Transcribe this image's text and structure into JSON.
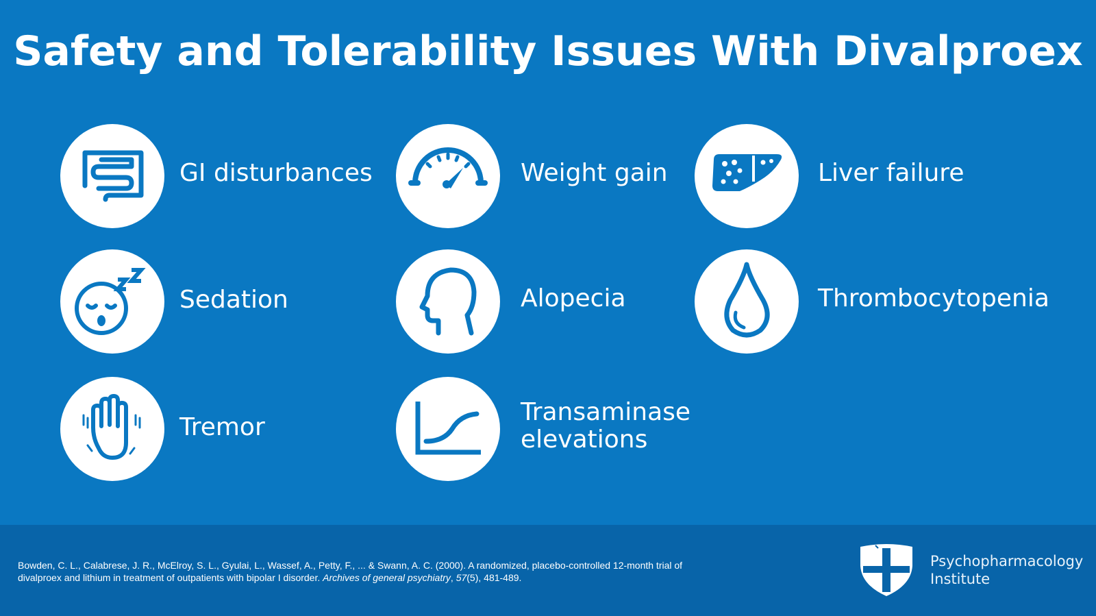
{
  "title": "Safety and Tolerability Issues With Divalproex",
  "colors": {
    "background": "#0a78c2",
    "footer": "#0864a9",
    "icon": "#0a78c2",
    "circle": "#ffffff"
  },
  "items": [
    {
      "label": "GI disturbances",
      "icon": "intestine-icon"
    },
    {
      "label": "Weight gain",
      "icon": "scale-gauge-icon"
    },
    {
      "label": "Liver failure",
      "icon": "liver-icon"
    },
    {
      "label": "Sedation",
      "icon": "sleepy-face-icon"
    },
    {
      "label": "Alopecia",
      "icon": "head-profile-icon"
    },
    {
      "label": "Thrombocytopenia",
      "icon": "blood-drop-icon"
    },
    {
      "label": "Tremor",
      "icon": "shaking-hand-icon"
    },
    {
      "label_line1": "Transaminase",
      "label_line2": "elevations",
      "icon": "rising-curve-icon"
    }
  ],
  "footer": {
    "citation_part1": "Bowden, C. L., Calabrese, J. R., McElroy, S. L., Gyulai, L., Wassef, A., Petty, F., ... & Swann, A. C. (2000). A randomized, placebo-controlled 12-month trial of divalproex and lithium in treatment of outpatients with bipolar I disorder. ",
    "citation_journal": "Archives of general psychiatry",
    "citation_sep": ", ",
    "citation_volume": "57",
    "citation_part2": "(5), 481-489.",
    "brand_line1": "Psychopharmacology",
    "brand_line2": "Institute"
  }
}
